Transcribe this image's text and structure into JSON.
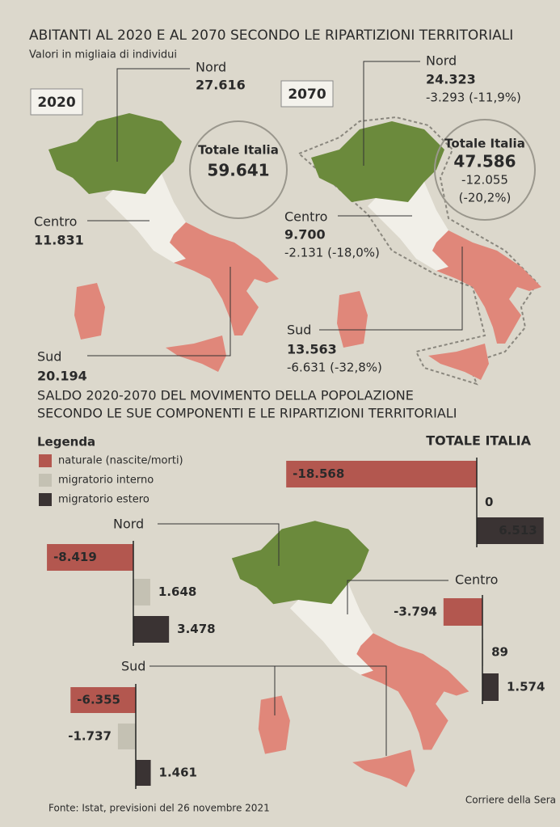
{
  "header": {
    "title": "ABITANTI AL 2020 E AL 2070 SECONDO LE RIPARTIZIONI TERRITORIALI",
    "subtitle": "Valori in migliaia di individui"
  },
  "map_2020": {
    "year": "2020",
    "nord": {
      "label": "Nord",
      "value": "27.616"
    },
    "centro": {
      "label": "Centro",
      "value": "11.831"
    },
    "sud": {
      "label": "Sud",
      "value": "20.194"
    },
    "total": {
      "label": "Totale Italia",
      "value": "59.641"
    }
  },
  "map_2070": {
    "year": "2070",
    "nord": {
      "label": "Nord",
      "value": "24.323",
      "change": "-3.293 (-11,9%)"
    },
    "centro": {
      "label": "Centro",
      "value": "9.700",
      "change": "-2.131 (-18,0%)"
    },
    "sud": {
      "label": "Sud",
      "value": "13.563",
      "change": "-6.631 (-32,8%)"
    },
    "total": {
      "label": "Totale Italia",
      "value": "47.586",
      "change": "-12.055",
      "change_pct": "(-20,2%)"
    }
  },
  "section": {
    "title_lines": [
      "SALDO 2020-2070 DEL MOVIMENTO DELLA POPOLAZIONE",
      "SECONDO LE SUE COMPONENTI E LE RIPARTIZIONI TERRITORIALI"
    ]
  },
  "legend": {
    "title": "Legenda",
    "items": [
      {
        "name": "naturale (nascite/morti)",
        "color": "#b3574f"
      },
      {
        "name": "migratorio interno",
        "color": "#c4c1b3"
      },
      {
        "name": "migratorio estero",
        "color": "#3a3333"
      }
    ]
  },
  "chart_data": [
    {
      "type": "bar",
      "title": "TOTALE ITALIA",
      "values": [
        -18568,
        0,
        6513
      ],
      "value_labels": [
        "-18.568",
        "0",
        "6.513"
      ]
    },
    {
      "type": "bar",
      "title": "Nord",
      "values": [
        -8419,
        1648,
        3478
      ],
      "value_labels": [
        "-8.419",
        "1.648",
        "3.478"
      ]
    },
    {
      "type": "bar",
      "title": "Centro",
      "values": [
        -3794,
        89,
        1574
      ],
      "value_labels": [
        "-3.794",
        "89",
        "1.574"
      ]
    },
    {
      "type": "bar",
      "title": "Sud",
      "values": [
        -6355,
        -1737,
        1461
      ],
      "value_labels": [
        "-6.355",
        "-1.737",
        "1.461"
      ]
    }
  ],
  "footer": {
    "source": "Fonte: Istat, previsioni del 26 novembre 2021",
    "credit": "Corriere della Sera"
  }
}
